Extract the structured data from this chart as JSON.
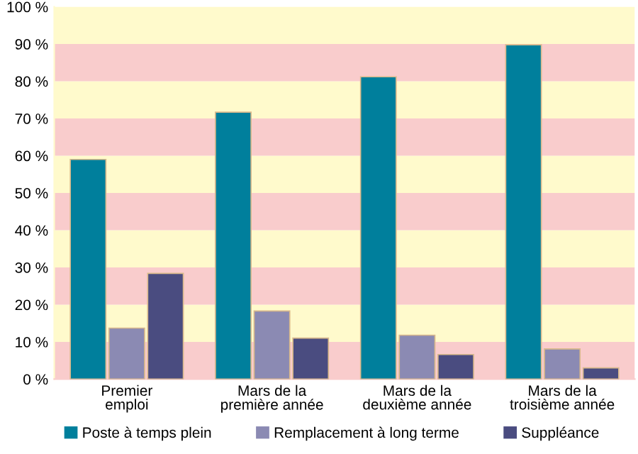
{
  "chart_data": {
    "type": "bar",
    "categories": [
      "Premier\nemploi",
      "Mars de la\npremière année",
      "Mars de la\ndeuxième année",
      "Mars de la\ntroisième année"
    ],
    "series": [
      {
        "name": "Poste à temps plein",
        "color": "#007f9c",
        "values": [
          59,
          71.7,
          81.2,
          89.8
        ]
      },
      {
        "name": "Remplacement à long terme",
        "color": "#8b8ab3",
        "values": [
          13.7,
          18.3,
          11.8,
          8.1
        ]
      },
      {
        "name": "Suppléance",
        "color": "#4a4c80",
        "values": [
          28.4,
          11,
          6.6,
          3
        ]
      }
    ],
    "ylim": [
      0,
      100
    ],
    "yticks": [
      {
        "value": 0,
        "label": "0 %"
      },
      {
        "value": 10,
        "label": "10 %"
      },
      {
        "value": 20,
        "label": "20 %"
      },
      {
        "value": 30,
        "label": "30 %"
      },
      {
        "value": 40,
        "label": "40 %"
      },
      {
        "value": 50,
        "label": "50 %"
      },
      {
        "value": 60,
        "label": "60 %"
      },
      {
        "value": 70,
        "label": "70 %"
      },
      {
        "value": 80,
        "label": "80 %"
      },
      {
        "value": 90,
        "label": "90 %"
      },
      {
        "value": 100,
        "label": "100 %"
      }
    ],
    "bands": [
      {
        "axis": "y",
        "from": 0,
        "to": 10,
        "color": "#f9cccc"
      },
      {
        "axis": "y",
        "from": 10,
        "to": 20,
        "color": "#fffacc"
      },
      {
        "axis": "y",
        "from": 20,
        "to": 30,
        "color": "#f9cccc"
      },
      {
        "axis": "y",
        "from": 30,
        "to": 40,
        "color": "#fffacc"
      },
      {
        "axis": "y",
        "from": 40,
        "to": 50,
        "color": "#f9cccc"
      },
      {
        "axis": "y",
        "from": 50,
        "to": 60,
        "color": "#fffacc"
      },
      {
        "axis": "y",
        "from": 60,
        "to": 70,
        "color": "#f9cccc"
      },
      {
        "axis": "y",
        "from": 70,
        "to": 80,
        "color": "#fffacc"
      },
      {
        "axis": "y",
        "from": 80,
        "to": 90,
        "color": "#f9cccc"
      },
      {
        "axis": "y",
        "from": 90,
        "to": 100,
        "color": "#fffacc"
      }
    ],
    "grid": false,
    "legend": "bottom"
  }
}
